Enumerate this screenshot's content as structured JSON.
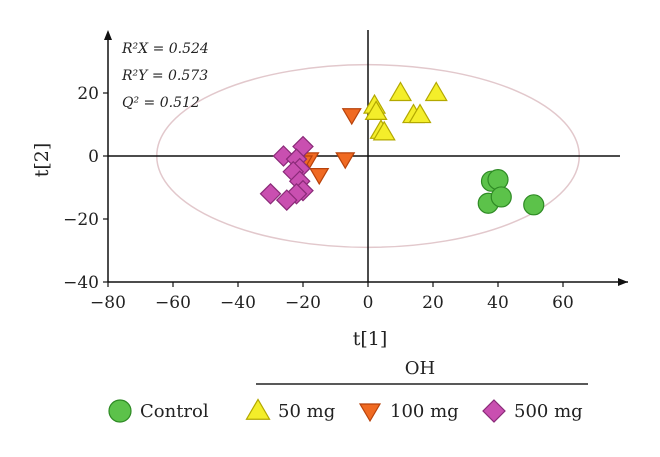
{
  "chart_data": {
    "type": "scatter",
    "title": "",
    "xlabel": "t[1]",
    "ylabel": "t[2]",
    "xlim": [
      -80,
      80
    ],
    "ylim": [
      -40,
      40
    ],
    "xticks": [
      -80,
      -60,
      -40,
      -20,
      0,
      20,
      40,
      60
    ],
    "yticks": [
      -40,
      -20,
      0,
      20
    ],
    "tick_labels_x": [
      "−80",
      "−60",
      "−40",
      "−20",
      "0",
      "20",
      "40",
      "60"
    ],
    "tick_labels_y": [
      "−40",
      "−20",
      "0",
      "20"
    ],
    "grid": false,
    "legend_position": "bottom",
    "annotations": {
      "r2x": "R²X = 0.524",
      "r2y": "R²Y = 0.573",
      "q2": "Q² = 0.512"
    },
    "ellipse": {
      "cx": 0,
      "cy": 0,
      "rx": 65,
      "ry": 29,
      "color": "#e2c8cc"
    },
    "legend_group_label": "OH",
    "series": [
      {
        "name": "Control",
        "marker": "circle",
        "color": "#5cc24a",
        "stroke": "#2e8a24",
        "points": [
          [
            38,
            -8
          ],
          [
            40,
            -7.5
          ],
          [
            37,
            -15
          ],
          [
            41,
            -13
          ],
          [
            51,
            -15.5
          ]
        ]
      },
      {
        "name": "50 mg",
        "marker": "triangle-up",
        "color": "#f4ee2a",
        "stroke": "#b3a800",
        "points": [
          [
            2,
            16
          ],
          [
            2.5,
            14
          ],
          [
            10,
            20
          ],
          [
            21,
            20
          ],
          [
            14,
            13
          ],
          [
            16,
            13
          ],
          [
            4,
            8
          ],
          [
            5,
            7.5
          ]
        ]
      },
      {
        "name": "100 mg",
        "marker": "triangle-down",
        "color": "#f06a22",
        "stroke": "#b8420a",
        "points": [
          [
            -5,
            13
          ],
          [
            -7,
            -1
          ],
          [
            -18,
            -1
          ],
          [
            -20,
            -2
          ],
          [
            -15,
            -6
          ]
        ]
      },
      {
        "name": "500 mg",
        "marker": "diamond",
        "color": "#c94fb0",
        "stroke": "#8a2a78",
        "points": [
          [
            -26,
            0
          ],
          [
            -20,
            3
          ],
          [
            -22,
            -1
          ],
          [
            -21,
            -4
          ],
          [
            -23,
            -5
          ],
          [
            -21,
            -8
          ],
          [
            -20,
            -11
          ],
          [
            -22,
            -12
          ],
          [
            -30,
            -12
          ],
          [
            -25,
            -14
          ]
        ]
      }
    ]
  }
}
